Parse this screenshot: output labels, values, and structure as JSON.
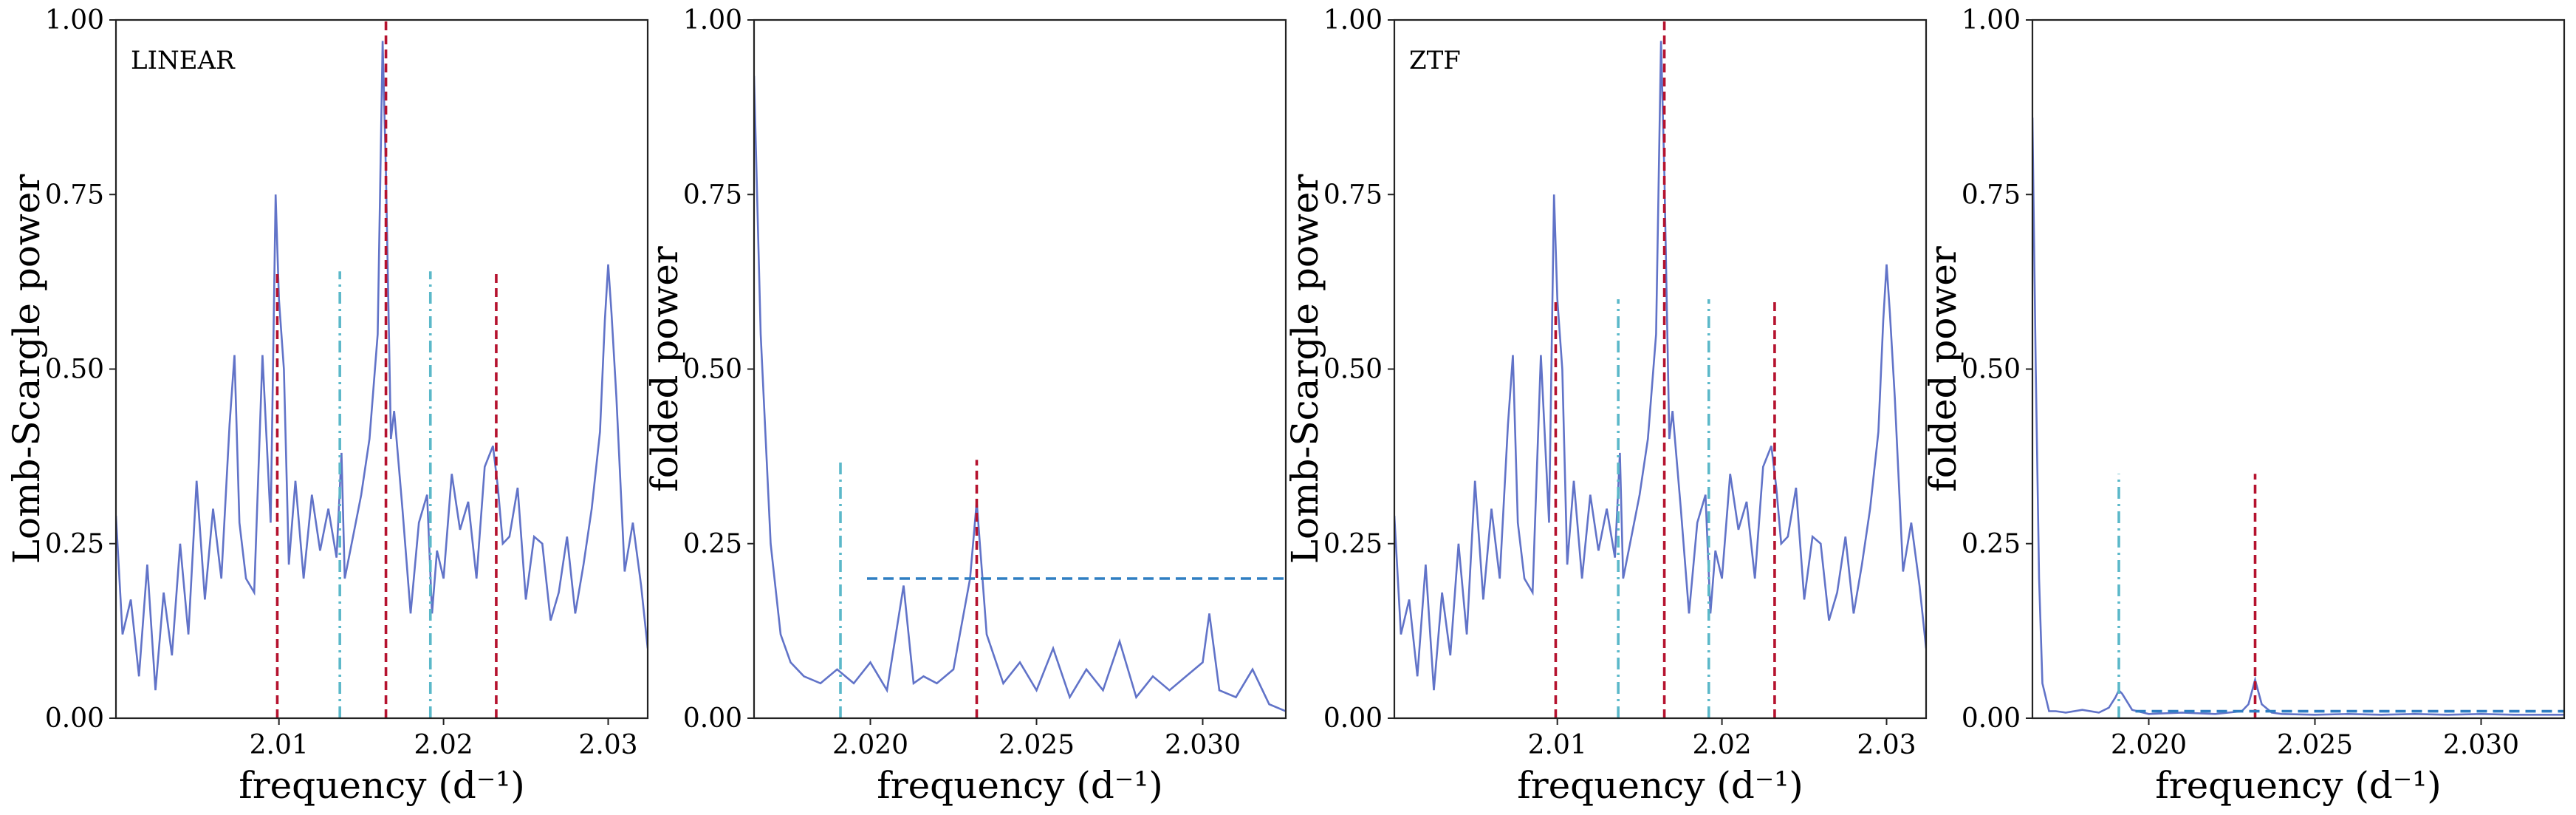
{
  "chart_data": [
    {
      "type": "line",
      "panel_label": "LINEAR",
      "xlabel": "frequency (d⁻¹)",
      "ylabel": "Lomb-Scargle power",
      "xlim": [
        2.0001,
        2.0324
      ],
      "ylim": [
        0,
        1
      ],
      "xticks": [
        2.01,
        2.02,
        2.03
      ],
      "xtick_labels": [
        "2.01",
        "2.02",
        "2.03"
      ],
      "yticks": [
        0,
        0.25,
        0.5,
        0.75,
        1.0
      ],
      "ytick_labels": [
        "0.00",
        "0.25",
        "0.50",
        "0.75",
        "1.00"
      ],
      "grid": false,
      "series": [
        {
          "color": "#6173c8",
          "x": [
            2.0001,
            2.0005,
            2.001,
            2.0015,
            2.002,
            2.0025,
            2.003,
            2.0035,
            2.004,
            2.0045,
            2.005,
            2.0055,
            2.006,
            2.0065,
            2.007,
            2.0073,
            2.0076,
            2.008,
            2.0085,
            2.009,
            2.0095,
            2.0098,
            2.01,
            2.0103,
            2.0106,
            2.011,
            2.0115,
            2.012,
            2.0125,
            2.013,
            2.0135,
            2.0138,
            2.014,
            2.0145,
            2.015,
            2.0155,
            2.016,
            2.0163,
            2.0165,
            2.0168,
            2.017,
            2.0175,
            2.018,
            2.0185,
            2.019,
            2.0193,
            2.0196,
            2.02,
            2.0205,
            2.021,
            2.0215,
            2.022,
            2.0225,
            2.023,
            2.0233,
            2.0236,
            2.024,
            2.0245,
            2.025,
            2.0255,
            2.026,
            2.0265,
            2.027,
            2.0275,
            2.028,
            2.0285,
            2.029,
            2.0295,
            2.0298,
            2.03,
            2.0302,
            2.0305,
            2.031,
            2.0315,
            2.032,
            2.0324
          ],
          "y": [
            0.29,
            0.12,
            0.17,
            0.06,
            0.22,
            0.04,
            0.18,
            0.09,
            0.25,
            0.12,
            0.34,
            0.17,
            0.3,
            0.2,
            0.42,
            0.52,
            0.28,
            0.2,
            0.18,
            0.52,
            0.28,
            0.75,
            0.6,
            0.5,
            0.22,
            0.34,
            0.2,
            0.32,
            0.24,
            0.3,
            0.23,
            0.38,
            0.2,
            0.26,
            0.32,
            0.4,
            0.55,
            0.97,
            0.78,
            0.4,
            0.44,
            0.3,
            0.15,
            0.28,
            0.32,
            0.15,
            0.24,
            0.2,
            0.35,
            0.27,
            0.31,
            0.2,
            0.36,
            0.39,
            0.33,
            0.25,
            0.26,
            0.33,
            0.17,
            0.26,
            0.25,
            0.14,
            0.18,
            0.26,
            0.15,
            0.22,
            0.3,
            0.41,
            0.57,
            0.65,
            0.58,
            0.46,
            0.21,
            0.28,
            0.19,
            0.1
          ]
        }
      ],
      "vlines": [
        {
          "x": 2.0099,
          "ymax": 0.64,
          "color": "#b5122e",
          "style": "dashed"
        },
        {
          "x": 2.0165,
          "ymax": 1.0,
          "color": "#b5122e",
          "style": "dashed"
        },
        {
          "x": 2.0232,
          "ymax": 0.64,
          "color": "#b5122e",
          "style": "dashed"
        },
        {
          "x": 2.0137,
          "ymax": 0.64,
          "color": "#5bb8c9",
          "style": "dashdot"
        },
        {
          "x": 2.0192,
          "ymax": 0.64,
          "color": "#5bb8c9",
          "style": "dashdot"
        }
      ],
      "hlines": []
    },
    {
      "type": "line",
      "panel_label": "",
      "xlabel": "frequency (d⁻¹)",
      "ylabel": "folded power",
      "xlim": [
        2.0165,
        2.0325
      ],
      "ylim": [
        0,
        1
      ],
      "xticks": [
        2.02,
        2.025,
        2.03
      ],
      "xtick_labels": [
        "2.020",
        "2.025",
        "2.030"
      ],
      "yticks": [
        0,
        0.25,
        0.5,
        0.75,
        1.0
      ],
      "ytick_labels": [
        "0.00",
        "0.25",
        "0.50",
        "0.75",
        "1.00"
      ],
      "grid": false,
      "series": [
        {
          "color": "#6173c8",
          "x": [
            2.0165,
            2.0167,
            2.017,
            2.0173,
            2.0176,
            2.018,
            2.0185,
            2.019,
            2.0195,
            2.02,
            2.0205,
            2.021,
            2.0213,
            2.0216,
            2.022,
            2.0225,
            2.023,
            2.0232,
            2.0235,
            2.024,
            2.0245,
            2.025,
            2.0255,
            2.026,
            2.0265,
            2.027,
            2.0275,
            2.028,
            2.0285,
            2.029,
            2.0295,
            2.03,
            2.0302,
            2.0305,
            2.031,
            2.0315,
            2.032,
            2.0325
          ],
          "y": [
            0.92,
            0.55,
            0.25,
            0.12,
            0.08,
            0.06,
            0.05,
            0.07,
            0.05,
            0.08,
            0.04,
            0.19,
            0.05,
            0.06,
            0.05,
            0.07,
            0.2,
            0.31,
            0.12,
            0.05,
            0.08,
            0.04,
            0.1,
            0.03,
            0.07,
            0.04,
            0.11,
            0.03,
            0.06,
            0.04,
            0.06,
            0.08,
            0.15,
            0.04,
            0.03,
            0.07,
            0.02,
            0.01
          ]
        }
      ],
      "vlines": [
        {
          "x": 2.0232,
          "ymax": 0.37,
          "color": "#b5122e",
          "style": "dashed"
        },
        {
          "x": 2.0191,
          "ymax": 0.37,
          "color": "#5bb8c9",
          "style": "dashdot"
        }
      ],
      "hlines": [
        {
          "y": 0.2,
          "xmin": 2.0199,
          "xmax": 2.0325,
          "color": "#2f7ec2",
          "style": "dashed"
        }
      ]
    },
    {
      "type": "line",
      "panel_label": "ZTF",
      "xlabel": "frequency (d⁻¹)",
      "ylabel": "Lomb-Scargle power",
      "xlim": [
        2.0001,
        2.0324
      ],
      "ylim": [
        0,
        1
      ],
      "xticks": [
        2.01,
        2.02,
        2.03
      ],
      "xtick_labels": [
        "2.01",
        "2.02",
        "2.03"
      ],
      "yticks": [
        0,
        0.25,
        0.5,
        0.75,
        1.0
      ],
      "ytick_labels": [
        "0.00",
        "0.25",
        "0.50",
        "0.75",
        "1.00"
      ],
      "grid": false,
      "series": [
        {
          "color": "#6173c8",
          "x": [
            2.0001,
            2.0005,
            2.001,
            2.0015,
            2.002,
            2.0025,
            2.003,
            2.0035,
            2.004,
            2.0045,
            2.005,
            2.0055,
            2.006,
            2.0065,
            2.007,
            2.0073,
            2.0076,
            2.008,
            2.0085,
            2.009,
            2.0095,
            2.0098,
            2.01,
            2.0103,
            2.0106,
            2.011,
            2.0115,
            2.012,
            2.0125,
            2.013,
            2.0135,
            2.0138,
            2.014,
            2.0145,
            2.015,
            2.0155,
            2.016,
            2.0163,
            2.0165,
            2.0168,
            2.017,
            2.0175,
            2.018,
            2.0185,
            2.019,
            2.0193,
            2.0196,
            2.02,
            2.0205,
            2.021,
            2.0215,
            2.022,
            2.0225,
            2.023,
            2.0233,
            2.0236,
            2.024,
            2.0245,
            2.025,
            2.0255,
            2.026,
            2.0265,
            2.027,
            2.0275,
            2.028,
            2.0285,
            2.029,
            2.0295,
            2.0298,
            2.03,
            2.0302,
            2.0305,
            2.031,
            2.0315,
            2.032,
            2.0324
          ],
          "y": [
            0.29,
            0.12,
            0.17,
            0.06,
            0.22,
            0.04,
            0.18,
            0.09,
            0.25,
            0.12,
            0.34,
            0.17,
            0.3,
            0.2,
            0.42,
            0.52,
            0.28,
            0.2,
            0.18,
            0.52,
            0.28,
            0.75,
            0.6,
            0.5,
            0.22,
            0.34,
            0.2,
            0.32,
            0.24,
            0.3,
            0.23,
            0.38,
            0.2,
            0.26,
            0.32,
            0.4,
            0.55,
            0.97,
            0.78,
            0.4,
            0.44,
            0.3,
            0.15,
            0.28,
            0.32,
            0.15,
            0.24,
            0.2,
            0.35,
            0.27,
            0.31,
            0.2,
            0.36,
            0.39,
            0.33,
            0.25,
            0.26,
            0.33,
            0.17,
            0.26,
            0.25,
            0.14,
            0.18,
            0.26,
            0.15,
            0.22,
            0.3,
            0.41,
            0.57,
            0.65,
            0.58,
            0.46,
            0.21,
            0.28,
            0.19,
            0.1
          ]
        }
      ],
      "vlines": [
        {
          "x": 2.0099,
          "ymax": 0.6,
          "color": "#b5122e",
          "style": "dashed"
        },
        {
          "x": 2.0165,
          "ymax": 1.0,
          "color": "#b5122e",
          "style": "dashed"
        },
        {
          "x": 2.0232,
          "ymax": 0.6,
          "color": "#b5122e",
          "style": "dashed"
        },
        {
          "x": 2.0137,
          "ymax": 0.6,
          "color": "#5bb8c9",
          "style": "dashdot"
        },
        {
          "x": 2.0192,
          "ymax": 0.6,
          "color": "#5bb8c9",
          "style": "dashdot"
        }
      ],
      "hlines": []
    },
    {
      "type": "line",
      "panel_label": "",
      "xlabel": "frequency (d⁻¹)",
      "ylabel": "folded power",
      "xlim": [
        2.0165,
        2.0325
      ],
      "ylim": [
        0,
        1
      ],
      "xticks": [
        2.02,
        2.025,
        2.03
      ],
      "xtick_labels": [
        "2.020",
        "2.025",
        "2.030"
      ],
      "yticks": [
        0,
        0.25,
        0.5,
        0.75,
        1.0
      ],
      "ytick_labels": [
        "0.00",
        "0.25",
        "0.50",
        "0.75",
        "1.00"
      ],
      "grid": false,
      "series": [
        {
          "color": "#6173c8",
          "x": [
            2.0165,
            2.0166,
            2.0167,
            2.0168,
            2.017,
            2.0172,
            2.0175,
            2.018,
            2.0185,
            2.0188,
            2.019,
            2.0191,
            2.0192,
            2.0195,
            2.02,
            2.021,
            2.022,
            2.0228,
            2.023,
            2.0232,
            2.0234,
            2.0237,
            2.024,
            2.025,
            2.026,
            2.027,
            2.028,
            2.029,
            2.03,
            2.031,
            2.032,
            2.0325
          ],
          "y": [
            0.86,
            0.5,
            0.2,
            0.05,
            0.01,
            0.01,
            0.008,
            0.012,
            0.008,
            0.015,
            0.03,
            0.04,
            0.035,
            0.012,
            0.006,
            0.008,
            0.006,
            0.01,
            0.02,
            0.055,
            0.02,
            0.008,
            0.006,
            0.005,
            0.006,
            0.005,
            0.006,
            0.005,
            0.006,
            0.005,
            0.005,
            0.005
          ]
        }
      ],
      "vlines": [
        {
          "x": 2.0232,
          "ymax": 0.35,
          "color": "#b5122e",
          "style": "dashed"
        },
        {
          "x": 2.0191,
          "ymax": 0.35,
          "color": "#5bb8c9",
          "style": "dashdot"
        }
      ],
      "hlines": [
        {
          "y": 0.01,
          "xmin": 2.0196,
          "xmax": 2.0325,
          "color": "#2f7ec2",
          "style": "dashed"
        }
      ]
    }
  ]
}
